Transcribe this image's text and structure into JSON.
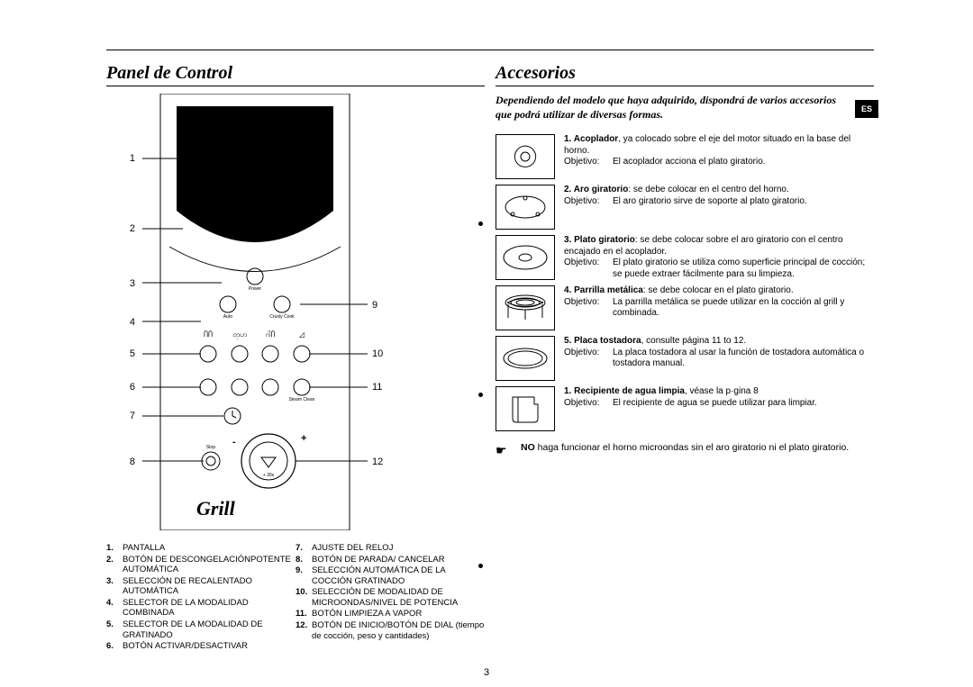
{
  "pageNumber": "3",
  "langTag": "ES",
  "left": {
    "title": "Panel de Control",
    "calloutsLeft": [
      "1",
      "2",
      "3",
      "4",
      "5",
      "6",
      "7",
      "8"
    ],
    "calloutsRight": [
      "9",
      "10",
      "11",
      "12"
    ],
    "panelLabels": {
      "power": "Power",
      "auto": "Auto",
      "crusty": "Crusty Cook",
      "steam": "Steam Clean",
      "stop": "Stop",
      "plus": "+",
      "sec": "+ 30s",
      "brand": "Grill"
    },
    "legendLeft": [
      {
        "n": "1.",
        "t": "PANTALLA"
      },
      {
        "n": "2.",
        "t": "BOTÓN DE DESCONGELACIÓNPOTENTE AUTOMÁTICA"
      },
      {
        "n": "3.",
        "t": "SELECCIÓN DE RECALENTADO AUTOMÁTICA"
      },
      {
        "n": "4.",
        "t": "SELECTOR DE LA MODALIDAD COMBINADA"
      },
      {
        "n": "5.",
        "t": "SELECTOR DE LA MODALIDAD DE GRATINADO"
      },
      {
        "n": "6.",
        "t": "BOTÓN ACTIVAR/DESACTIVAR"
      }
    ],
    "legendRight": [
      {
        "n": "7.",
        "t": "AJUSTE DEL RELOJ"
      },
      {
        "n": "8.",
        "t": "BOTÓN DE PARADA/ CANCELAR"
      },
      {
        "n": "9.",
        "t": "SELECCIÓN AUTOMÁTICA DE LA COCCIÓN GRATINADO"
      },
      {
        "n": "10.",
        "t": "SELECCIÓN DE MODALIDAD DE MICROONDAS/NIVEL DE POTENCIA"
      },
      {
        "n": "11.",
        "t": "BOTÓN LIMPIEZA A VAPOR"
      },
      {
        "n": "12.",
        "t": "BOTÓN DE INICIO/BOTÓN DE DIAL (tiempo de cocción, peso y cantidades)",
        "mixed": true
      }
    ]
  },
  "right": {
    "title": "Accesorios",
    "intro": "Dependiendo del modelo que haya adquirido, dispondrá de varios accesorios que podrá utilizar de diversas formas.",
    "objLabel": "Objetivo:",
    "items": [
      {
        "n": "1.",
        "name": "Acoplador",
        "rest": ", ya colocado sobre el eje del motor situado en la base del horno.",
        "obj": "El acoplador acciona el plato giratorio."
      },
      {
        "n": "2.",
        "name": "Aro giratorio",
        "rest": ": se debe colocar en el centro del horno.",
        "obj": "El aro giratorio sirve de soporte al plato giratorio."
      },
      {
        "n": "3.",
        "name": "Plato giratorio",
        "rest": ": se debe colocar sobre el aro giratorio con el centro encajado en el acoplador.",
        "obj": "El plato giratorio se utiliza como superficie principal de cocción; se puede extraer fácilmente para su limpieza."
      },
      {
        "n": "4.",
        "name": "Parrilla metálica",
        "rest": ": se debe colocar en el plato giratorio.",
        "obj": "La parrilla metálica se puede utilizar en la cocción al grill y combinada."
      },
      {
        "n": "5.",
        "name": "Placa tostadora",
        "rest": ", consulte página 11 to 12.",
        "obj": "La placa tostadora al usar la función de tostadora automática o tostadora manual."
      },
      {
        "n": "1.",
        "name": "Recipiente de agua limpia",
        "rest": ", véase la p·gina 8",
        "obj": "El recipiente de agua se puede utilizar para limpiar."
      }
    ],
    "warning": {
      "no": "NO",
      "text": " haga funcionar el horno microondas sin el aro giratorio ni el plato giratorio."
    }
  },
  "colors": {
    "fg": "#000000",
    "bg": "#ffffff"
  }
}
